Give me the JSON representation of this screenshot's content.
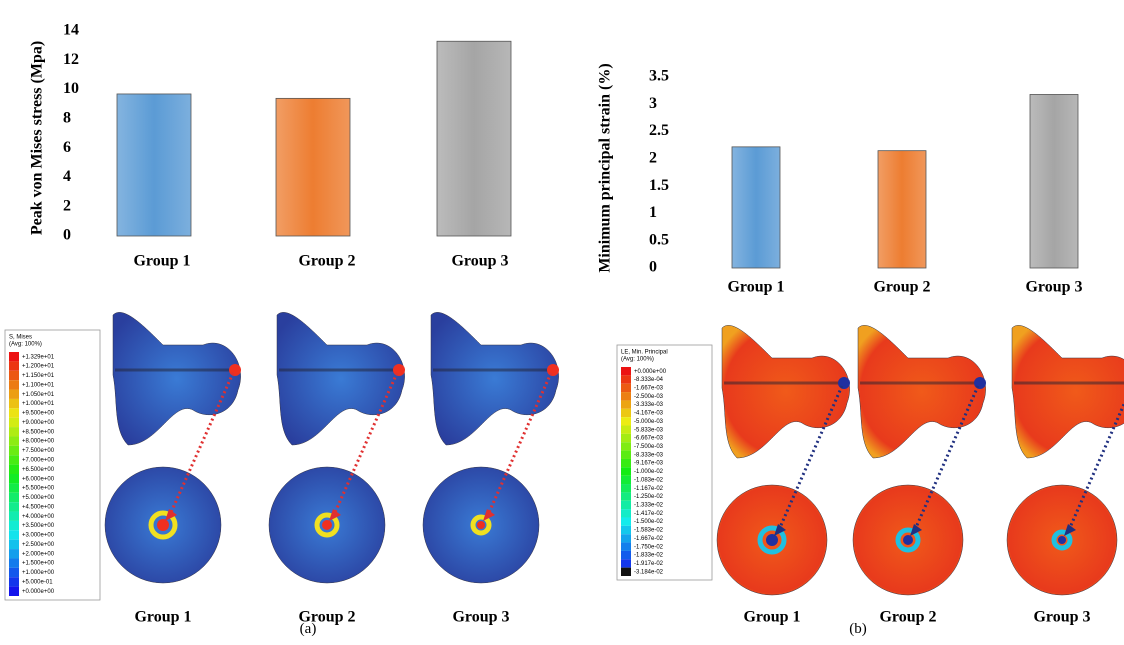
{
  "chart_data": [
    {
      "type": "bar",
      "ylabel": "Peak von Mises stress (Mpa)",
      "categories": [
        "Group 1",
        "Group 2",
        "Group 3"
      ],
      "values": [
        9.7,
        9.4,
        13.3
      ],
      "colors": [
        "#5b9bd5",
        "#ed7d31",
        "#a5a5a5"
      ],
      "ylim": [
        0,
        14
      ],
      "yticks": [
        0,
        2,
        4,
        6,
        8,
        10,
        12,
        14
      ]
    },
    {
      "type": "bar",
      "ylabel": "Minimum principal strain (%)",
      "categories": [
        "Group 1",
        "Group 2",
        "Group 3"
      ],
      "values": [
        2.22,
        2.15,
        3.18
      ],
      "colors": [
        "#5b9bd5",
        "#ed7d31",
        "#a5a5a5"
      ],
      "ylim": [
        0,
        3.5
      ],
      "yticks": [
        0,
        0.5,
        1,
        1.5,
        2,
        2.5,
        3,
        3.5
      ]
    }
  ],
  "figures": [
    {
      "legend_title": "S, Mises",
      "legend_subtitle": "(Avg: 100%)",
      "legend_labels": [
        "+1.329e+01",
        "+1.200e+01",
        "+1.150e+01",
        "+1.100e+01",
        "+1.050e+01",
        "+1.000e+01",
        "+9.500e+00",
        "+9.000e+00",
        "+8.500e+00",
        "+8.000e+00",
        "+7.500e+00",
        "+7.000e+00",
        "+6.500e+00",
        "+6.000e+00",
        "+5.500e+00",
        "+5.000e+00",
        "+4.500e+00",
        "+4.000e+00",
        "+3.500e+00",
        "+3.000e+00",
        "+2.500e+00",
        "+2.000e+00",
        "+1.500e+00",
        "+1.000e+00",
        "+5.000e-01",
        "+0.000e+00"
      ],
      "groups": [
        "Group 1",
        "Group 2",
        "Group 3"
      ]
    },
    {
      "legend_title": "LE, Min. Principal",
      "legend_subtitle": "(Avg: 100%)",
      "legend_labels": [
        "+0.000e+00",
        "-8.333e-04",
        "-1.667e-03",
        "-2.500e-03",
        "-3.333e-03",
        "-4.167e-03",
        "-5.000e-03",
        "-5.833e-03",
        "-6.667e-03",
        "-7.500e-03",
        "-8.333e-03",
        "-9.167e-03",
        "-1.000e-02",
        "-1.083e-02",
        "-1.167e-02",
        "-1.250e-02",
        "-1.333e-02",
        "-1.417e-02",
        "-1.500e-02",
        "-1.583e-02",
        "-1.667e-02",
        "-1.750e-02",
        "-1.833e-02",
        "-1.917e-02",
        "-3.184e-02"
      ],
      "groups": [
        "Group 1",
        "Group 2",
        "Group 3"
      ]
    }
  ],
  "panel_labels": [
    "(a)",
    "(b)"
  ]
}
